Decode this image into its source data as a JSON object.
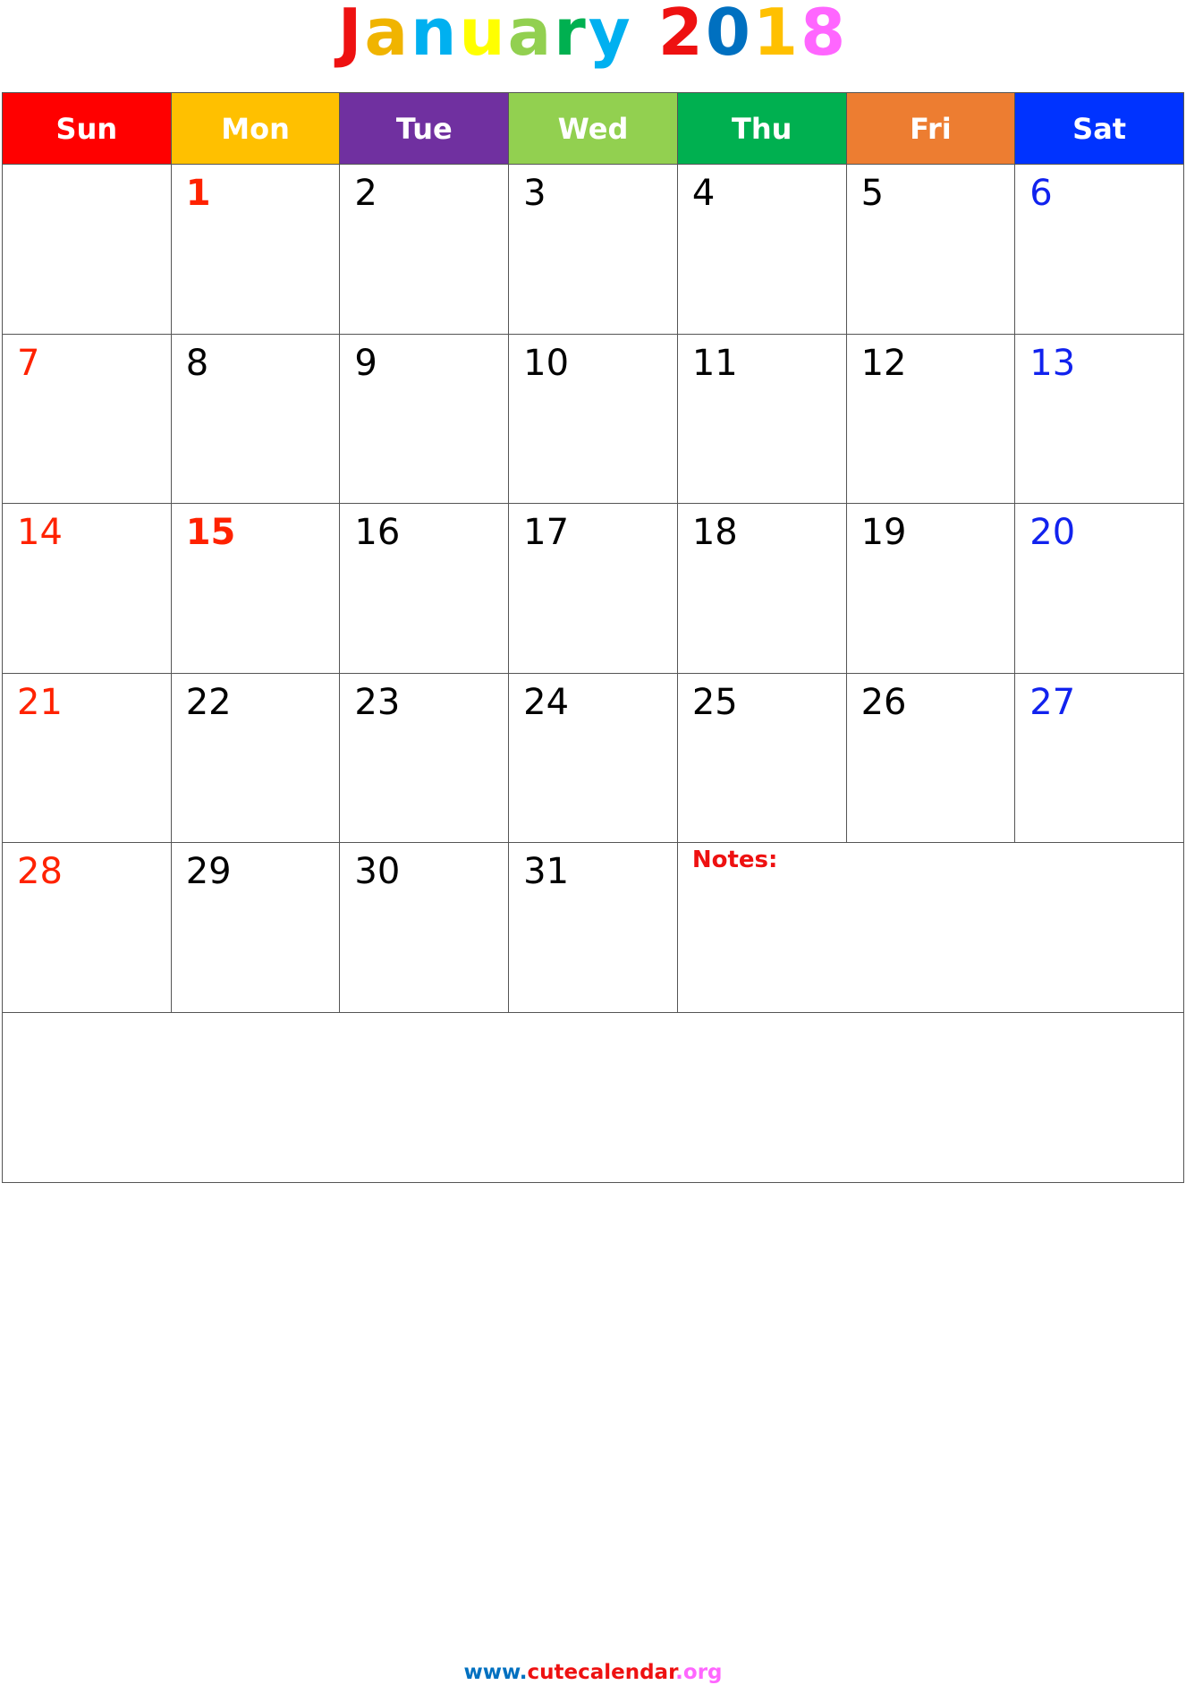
{
  "title": "January 2018",
  "title_colors": [
    "#ee1111",
    "#f0b400",
    "#00b0f0",
    "#ffff00",
    "#92d050",
    "#00b050",
    "#00b0f0",
    "#ffffff",
    "#ee1111",
    "#0070c0",
    "#ffc000",
    "#ff66ff"
  ],
  "weekdays": [
    {
      "label": "Sun",
      "color": "#ff0000"
    },
    {
      "label": "Mon",
      "color": "#ffc000"
    },
    {
      "label": "Tue",
      "color": "#7030a0"
    },
    {
      "label": "Wed",
      "color": "#92d050"
    },
    {
      "label": "Thu",
      "color": "#00b050"
    },
    {
      "label": "Fri",
      "color": "#ed7d31"
    },
    {
      "label": "Sat",
      "color": "#0033ff"
    }
  ],
  "weeks": [
    [
      null,
      1,
      2,
      3,
      4,
      5,
      6
    ],
    [
      7,
      8,
      9,
      10,
      11,
      12,
      13
    ],
    [
      14,
      15,
      16,
      17,
      18,
      19,
      20
    ],
    [
      21,
      22,
      23,
      24,
      25,
      26,
      27
    ],
    [
      28,
      29,
      30,
      31
    ]
  ],
  "sunday_color": "#ff2200",
  "saturday_color": "#1122ee",
  "holidays": {
    "color": "#ff2200",
    "days": [
      1,
      15
    ]
  },
  "notes_label": "Notes:",
  "footer": [
    {
      "text": "www.",
      "color": "#0070c0"
    },
    {
      "text": "cutecalendar",
      "color": "#ee1111"
    },
    {
      "text": ".org",
      "color": "#ff66ff"
    }
  ]
}
